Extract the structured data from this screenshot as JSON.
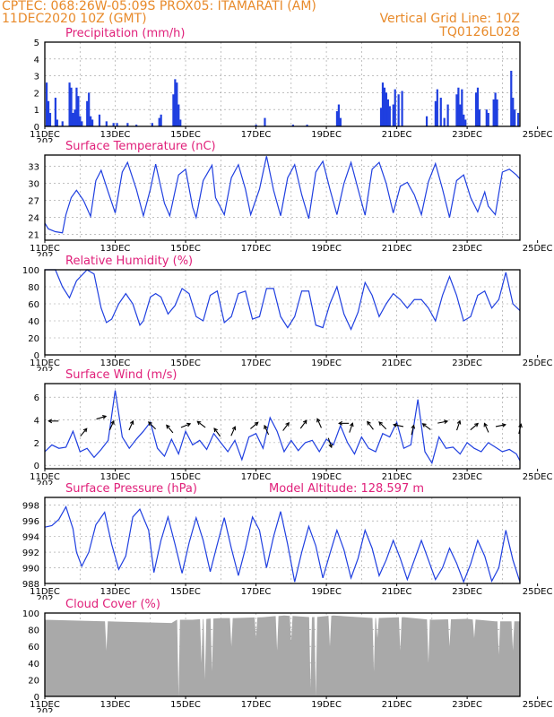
{
  "header": {
    "line1_left": "CPTEC:   068:26W-05:09S   PROX05: ITAMARATI (AM)",
    "line2_left": "11DEC2020 10Z (GMT)",
    "line2_right": "Vertical Grid Line: 10Z",
    "line3_right": "TQ0126L028"
  },
  "colors": {
    "header": "#e88a2a",
    "title": "#e0207a",
    "series": "#1f3fe0",
    "cloud": "#a9a9a9",
    "arrow": "#000000"
  },
  "x_axis": {
    "labels": [
      "11DEC",
      "13DEC",
      "15DEC",
      "17DEC",
      "19DEC",
      "21DEC",
      "23DEC",
      "25DEC"
    ],
    "cut_label": "202"
  },
  "chart_data": [
    {
      "type": "bar",
      "title": "Precipitation (mm/h)",
      "ylim": [
        0,
        5
      ],
      "yticks": [
        0,
        1,
        2,
        3,
        4,
        5
      ],
      "x_unit": "days since 11DEC 10Z",
      "bars": [
        [
          0.05,
          2.6
        ],
        [
          0.1,
          1.5
        ],
        [
          0.15,
          0.8
        ],
        [
          0.3,
          1.7
        ],
        [
          0.35,
          0.4
        ],
        [
          0.5,
          0.3
        ],
        [
          0.7,
          2.6
        ],
        [
          0.75,
          2.3
        ],
        [
          0.8,
          0.8
        ],
        [
          0.85,
          1.0
        ],
        [
          0.9,
          2.3
        ],
        [
          0.95,
          1.8
        ],
        [
          1.0,
          0.6
        ],
        [
          1.05,
          0.3
        ],
        [
          1.2,
          1.5
        ],
        [
          1.25,
          2.0
        ],
        [
          1.3,
          0.6
        ],
        [
          1.35,
          0.4
        ],
        [
          1.55,
          0.7
        ],
        [
          1.75,
          0.3
        ],
        [
          1.95,
          0.2
        ],
        [
          2.05,
          0.2
        ],
        [
          2.35,
          0.2
        ],
        [
          2.6,
          0.1
        ],
        [
          3.05,
          0.2
        ],
        [
          3.25,
          0.5
        ],
        [
          3.3,
          0.7
        ],
        [
          3.65,
          1.9
        ],
        [
          3.7,
          2.8
        ],
        [
          3.75,
          2.6
        ],
        [
          3.8,
          1.3
        ],
        [
          3.85,
          0.4
        ],
        [
          6.0,
          0.1
        ],
        [
          6.25,
          0.5
        ],
        [
          7.05,
          0.1
        ],
        [
          7.45,
          0.1
        ],
        [
          8.3,
          0.9
        ],
        [
          8.35,
          1.3
        ],
        [
          8.4,
          0.5
        ],
        [
          9.55,
          1.1
        ],
        [
          9.6,
          2.6
        ],
        [
          9.65,
          2.3
        ],
        [
          9.7,
          2.0
        ],
        [
          9.75,
          1.6
        ],
        [
          9.8,
          1.2
        ],
        [
          9.9,
          1.3
        ],
        [
          9.95,
          2.2
        ],
        [
          10.05,
          1.9
        ],
        [
          10.15,
          2.1
        ],
        [
          10.85,
          0.6
        ],
        [
          11.1,
          1.5
        ],
        [
          11.15,
          2.2
        ],
        [
          11.25,
          1.7
        ],
        [
          11.35,
          0.5
        ],
        [
          11.45,
          1.3
        ],
        [
          11.7,
          1.9
        ],
        [
          11.75,
          2.3
        ],
        [
          11.8,
          1.3
        ],
        [
          11.85,
          2.2
        ],
        [
          11.9,
          0.7
        ],
        [
          11.95,
          0.4
        ],
        [
          12.25,
          2.0
        ],
        [
          12.3,
          2.3
        ],
        [
          12.35,
          1.0
        ],
        [
          12.55,
          1.0
        ],
        [
          12.6,
          0.8
        ],
        [
          12.75,
          1.6
        ],
        [
          12.8,
          2.0
        ],
        [
          12.85,
          1.6
        ],
        [
          13.25,
          3.3
        ],
        [
          13.3,
          1.7
        ],
        [
          13.35,
          1.0
        ],
        [
          13.45,
          0.8
        ]
      ]
    },
    {
      "type": "line",
      "title": "Surface Temperature (nC)",
      "ylim": [
        20,
        35
      ],
      "yticks": [
        21,
        24,
        27,
        30,
        33
      ],
      "x": [
        0,
        0.1,
        0.3,
        0.5,
        0.6,
        0.75,
        0.9,
        1.1,
        1.3,
        1.45,
        1.6,
        1.8,
        2.0,
        2.2,
        2.35,
        2.6,
        2.8,
        3.0,
        3.15,
        3.4,
        3.55,
        3.8,
        4.0,
        4.2,
        4.3,
        4.5,
        4.75,
        4.85,
        5.1,
        5.3,
        5.5,
        5.7,
        5.85,
        6.1,
        6.3,
        6.5,
        6.7,
        6.9,
        7.1,
        7.3,
        7.5,
        7.7,
        7.9,
        8.1,
        8.3,
        8.5,
        8.7,
        8.9,
        9.1,
        9.3,
        9.5,
        9.7,
        9.9,
        10.1,
        10.3,
        10.5,
        10.7,
        10.9,
        11.1,
        11.3,
        11.5,
        11.7,
        11.9,
        12.1,
        12.3,
        12.5,
        12.6,
        12.8,
        13.0,
        13.2,
        13.4,
        13.5
      ],
      "y": [
        23,
        22,
        21.5,
        21.3,
        24.5,
        27.5,
        28.8,
        27,
        24.2,
        30.5,
        32.3,
        28.5,
        24.8,
        32,
        33.7,
        29,
        24.3,
        29,
        33.4,
        26.5,
        24.3,
        31.5,
        32.5,
        25.8,
        24,
        30.5,
        33.2,
        27.5,
        24.5,
        31,
        33.3,
        29,
        24.5,
        29,
        34.8,
        28.8,
        24.3,
        31,
        33.3,
        28,
        23.8,
        32,
        33.9,
        29,
        24.5,
        30,
        33.7,
        29,
        24.4,
        32.5,
        33.7,
        30,
        24.8,
        29.5,
        30.2,
        28,
        24.5,
        30.3,
        33.5,
        29,
        24,
        30.5,
        31.5,
        27.5,
        25,
        28.5,
        26,
        24.5,
        32,
        32.5,
        31.5,
        30.8
      ]
    },
    {
      "type": "line",
      "title": "Relative Humidity (%)",
      "ylim": [
        0,
        100
      ],
      "yticks": [
        0,
        20,
        40,
        60,
        80,
        100
      ],
      "x": [
        0,
        0.3,
        0.5,
        0.7,
        0.9,
        1.2,
        1.4,
        1.6,
        1.75,
        1.9,
        2.1,
        2.3,
        2.5,
        2.7,
        2.8,
        3.0,
        3.15,
        3.3,
        3.5,
        3.7,
        3.9,
        4.1,
        4.3,
        4.5,
        4.7,
        4.9,
        5.1,
        5.3,
        5.5,
        5.7,
        5.9,
        6.1,
        6.3,
        6.5,
        6.7,
        6.9,
        7.1,
        7.3,
        7.5,
        7.7,
        7.9,
        8.1,
        8.3,
        8.5,
        8.7,
        8.9,
        9.1,
        9.3,
        9.5,
        9.7,
        9.9,
        10.1,
        10.3,
        10.5,
        10.7,
        10.9,
        11.1,
        11.3,
        11.5,
        11.7,
        11.9,
        12.1,
        12.3,
        12.5,
        12.7,
        12.9,
        13.1,
        13.3,
        13.5
      ],
      "y": [
        100,
        100,
        80,
        67,
        87,
        100,
        95,
        55,
        38,
        42,
        60,
        72,
        60,
        35,
        40,
        68,
        72,
        68,
        48,
        58,
        78,
        72,
        45,
        40,
        70,
        75,
        38,
        45,
        72,
        75,
        42,
        45,
        78,
        78,
        45,
        32,
        45,
        75,
        75,
        35,
        32,
        60,
        80,
        48,
        30,
        50,
        85,
        70,
        45,
        60,
        72,
        65,
        55,
        65,
        65,
        55,
        40,
        70,
        92,
        70,
        40,
        45,
        70,
        75,
        55,
        65,
        97,
        60,
        52
      ]
    },
    {
      "type": "line",
      "title": "Surface Wind (m/s)",
      "ylim": [
        -0.3,
        7.2
      ],
      "yticks": [
        0,
        2,
        4,
        6
      ],
      "x": [
        0,
        0.2,
        0.4,
        0.6,
        0.8,
        1.0,
        1.2,
        1.4,
        1.6,
        1.8,
        2.0,
        2.2,
        2.4,
        2.6,
        2.8,
        3.0,
        3.2,
        3.4,
        3.6,
        3.8,
        4.0,
        4.2,
        4.4,
        4.6,
        4.8,
        5.0,
        5.2,
        5.4,
        5.6,
        5.8,
        6.0,
        6.2,
        6.4,
        6.6,
        6.8,
        7.0,
        7.2,
        7.4,
        7.6,
        7.8,
        8.0,
        8.2,
        8.4,
        8.6,
        8.8,
        9.0,
        9.2,
        9.4,
        9.6,
        9.8,
        10.0,
        10.2,
        10.4,
        10.6,
        10.8,
        11.0,
        11.2,
        11.4,
        11.6,
        11.8,
        12.0,
        12.2,
        12.4,
        12.6,
        12.8,
        13.0,
        13.2,
        13.4,
        13.5
      ],
      "y": [
        1.2,
        1.8,
        1.5,
        1.6,
        3.0,
        1.2,
        1.5,
        0.7,
        1.4,
        2.2,
        6.6,
        2.5,
        1.5,
        2.3,
        3.0,
        3.8,
        1.5,
        0.8,
        2.3,
        1.0,
        3.0,
        1.8,
        2.2,
        1.4,
        2.8,
        2.0,
        1.2,
        2.2,
        0.5,
        2.5,
        2.8,
        1.5,
        4.2,
        3.0,
        1.2,
        2.2,
        1.3,
        2.0,
        2.2,
        1.2,
        2.3,
        1.8,
        3.5,
        2.0,
        1.0,
        2.5,
        1.5,
        1.2,
        2.8,
        2.5,
        3.8,
        1.5,
        1.8,
        5.8,
        1.2,
        0.2,
        2.5,
        1.5,
        1.6,
        1.0,
        2.0,
        1.5,
        1.2,
        2.0,
        1.6,
        1.2,
        1.4,
        1.0,
        0.4
      ]
    },
    {
      "type": "line",
      "title": "Surface Pressure (hPa)",
      "annotation": "Model Altitude: 128.597  m",
      "ylim": [
        988,
        999
      ],
      "yticks": [
        988,
        990,
        992,
        994,
        996,
        998
      ],
      "x": [
        0,
        0.2,
        0.4,
        0.6,
        0.8,
        0.9,
        1.05,
        1.25,
        1.45,
        1.7,
        1.9,
        2.1,
        2.3,
        2.5,
        2.7,
        2.95,
        3.1,
        3.3,
        3.5,
        3.7,
        3.9,
        4.1,
        4.3,
        4.5,
        4.7,
        4.9,
        5.1,
        5.3,
        5.5,
        5.7,
        5.9,
        6.1,
        6.3,
        6.5,
        6.7,
        6.9,
        7.1,
        7.3,
        7.5,
        7.7,
        7.9,
        8.1,
        8.3,
        8.5,
        8.7,
        8.9,
        9.1,
        9.3,
        9.5,
        9.7,
        9.9,
        10.1,
        10.3,
        10.5,
        10.7,
        10.9,
        11.1,
        11.3,
        11.5,
        11.7,
        11.9,
        12.1,
        12.3,
        12.5,
        12.7,
        12.9,
        13.1,
        13.3,
        13.5
      ],
      "y": [
        995.2,
        995.4,
        996.2,
        997.8,
        995,
        992,
        990.2,
        992,
        995.5,
        997.1,
        993,
        989.8,
        991.5,
        996.5,
        997.5,
        994.8,
        989.4,
        993.5,
        996.5,
        993,
        989.3,
        993.2,
        996.4,
        993.5,
        989.5,
        993,
        996.4,
        992.5,
        989,
        992.5,
        996.5,
        994.8,
        990,
        994,
        997.2,
        993,
        988.2,
        992,
        995.3,
        992.8,
        988.7,
        991.8,
        994.8,
        992.3,
        988.7,
        991.2,
        994.8,
        992.5,
        989,
        991,
        993.5,
        991.2,
        988.5,
        991,
        993.5,
        991,
        988.5,
        990,
        992.5,
        990.6,
        988.2,
        990.5,
        993.5,
        991.5,
        988.3,
        990,
        994.8,
        991,
        988.2
      ]
    },
    {
      "type": "bar",
      "title": "Cloud Cover (%)",
      "ylim": [
        0,
        100
      ],
      "yticks": [
        0,
        20,
        40,
        60,
        80,
        100
      ],
      "segments": [
        [
          0,
          92
        ],
        [
          1.8,
          90
        ],
        [
          3.6,
          88
        ],
        [
          3.75,
          92
        ],
        [
          4.2,
          92
        ],
        [
          5.0,
          94
        ],
        [
          5.4,
          94
        ],
        [
          6.2,
          95
        ],
        [
          6.8,
          97
        ],
        [
          7.6,
          95
        ],
        [
          8.2,
          97
        ],
        [
          9.4,
          94
        ],
        [
          10.2,
          95
        ],
        [
          11.0,
          92
        ],
        [
          12.0,
          93
        ],
        [
          12.8,
          90
        ],
        [
          13.5,
          90
        ]
      ],
      "dips": [
        [
          1.75,
          55
        ],
        [
          3.8,
          0
        ],
        [
          4.45,
          40
        ],
        [
          4.55,
          20
        ],
        [
          4.75,
          30
        ],
        [
          5.3,
          60
        ],
        [
          6.0,
          70
        ],
        [
          6.6,
          55
        ],
        [
          7.0,
          65
        ],
        [
          7.55,
          10
        ],
        [
          7.7,
          0
        ],
        [
          8.1,
          60
        ],
        [
          9.35,
          30
        ],
        [
          9.45,
          70
        ],
        [
          10.1,
          55
        ],
        [
          10.9,
          40
        ],
        [
          11.5,
          60
        ],
        [
          12.2,
          70
        ],
        [
          12.9,
          50
        ],
        [
          13.3,
          55
        ]
      ]
    }
  ],
  "wind_arrows": {
    "x": [
      0.25,
      1.1,
      1.6,
      1.9,
      2.45,
      3.05,
      3.55,
      4.0,
      4.45,
      4.9,
      5.35,
      5.95,
      6.3,
      6.85,
      7.35,
      7.8,
      8.1,
      8.5,
      8.7,
      9.25,
      9.6,
      10.05,
      10.45,
      10.85,
      11.3,
      11.75,
      12.2,
      12.55,
      12.95,
      13.5
    ],
    "u": [
      -1,
      0.5,
      1,
      0.4,
      0.4,
      -0.7,
      -0.5,
      1,
      -0.8,
      -0.6,
      0.4,
      0.7,
      -0.4,
      0.6,
      0.6,
      -0.4,
      0.3,
      -1,
      0.3,
      -0.6,
      -0.7,
      -1,
      0.2,
      -0.8,
      1,
      0.3,
      0.7,
      -0.4,
      1,
      0.2
    ],
    "v": [
      0,
      0.6,
      0.3,
      0.9,
      0.9,
      0.7,
      0.6,
      0.4,
      0.6,
      0.8,
      0.9,
      0.6,
      0.9,
      0.8,
      0.8,
      0.9,
      -0.9,
      0,
      0.9,
      0.8,
      0.7,
      0.2,
      0.9,
      0.6,
      0.2,
      0.9,
      0.6,
      0.9,
      0.2,
      0.9
    ],
    "y": [
      3.9,
      2.9,
      4.2,
      3.5,
      3.5,
      3.5,
      3.2,
      3.5,
      3.6,
      2.9,
      3.0,
      3.5,
      3.1,
      3.4,
      3.6,
      3.7,
      2.0,
      3.7,
      3.3,
      3.5,
      3.5,
      3.5,
      3.1,
      3.4,
      3.8,
      3.5,
      3.4,
      3.3,
      3.5,
      3.2
    ]
  }
}
